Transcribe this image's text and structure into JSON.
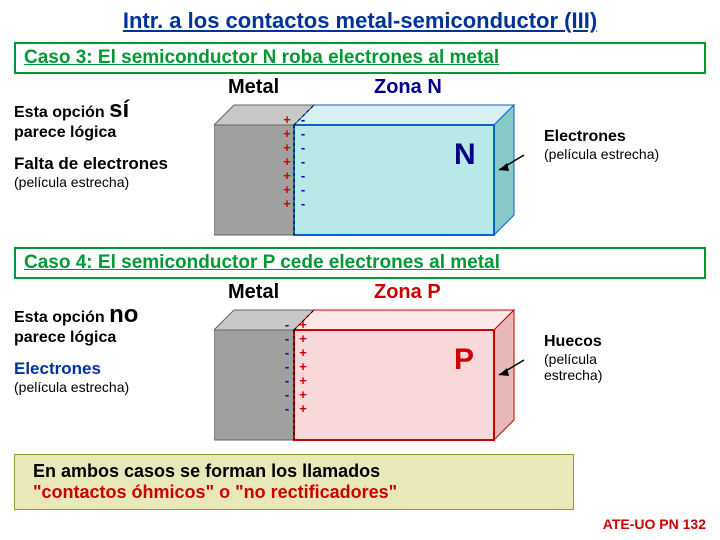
{
  "title": {
    "text": "Intr. a los contactos metal-semiconductor (III)",
    "color": "#003399"
  },
  "case3": {
    "heading": "Caso 3: El semiconductor N roba electrones al metal",
    "border_color": "#009933",
    "text_color": "#009933",
    "left": {
      "opt1a": "Esta opción ",
      "opt1b": "sí",
      "opt2": "parece lógica",
      "lack": "Falta de electrones",
      "film": "(película estrecha)"
    },
    "labels": {
      "metal": "Metal",
      "zone": "Zona N",
      "letter": "N"
    },
    "right": {
      "label": "Electrones",
      "film": "(película estrecha)"
    },
    "visual": {
      "metal_fill": "#a0a0a0",
      "metal_top": "#c8c8c8",
      "metal_side": "#808080",
      "zone_fill": "#b8e8e8",
      "zone_top": "#d8f0f0",
      "zone_side": "#88c8c8",
      "zone_stroke": "#0066cc",
      "letter_color": "#000088",
      "zone_label_color": "#000088",
      "plus_color": "#cc0000",
      "minus_color": "#0000cc"
    }
  },
  "case4": {
    "heading": "Caso 4: El semiconductor P cede electrones al metal",
    "border_color": "#009933",
    "text_color": "#009933",
    "left": {
      "opt1a": "Esta opción ",
      "opt1b": "no",
      "opt2": "parece lógica",
      "elec": "Electrones",
      "film": "(película estrecha)",
      "elec_color": "#003399"
    },
    "labels": {
      "metal": "Metal",
      "zone": "Zona P",
      "letter": "P"
    },
    "right": {
      "label": "Huecos",
      "film1": "(película",
      "film2": "estrecha)"
    },
    "visual": {
      "metal_fill": "#a0a0a0",
      "metal_top": "#c8c8c8",
      "metal_side": "#808080",
      "zone_fill": "#f8d8d8",
      "zone_top": "#fce8e8",
      "zone_side": "#e8b8b8",
      "zone_stroke": "#cc0000",
      "letter_color": "#cc0000",
      "zone_label_color": "#cc0000",
      "plus_color": "#cc0000",
      "minus_color": "#0000cc"
    }
  },
  "conclusion": {
    "line1": "En ambos casos se forman los llamados",
    "line2": "\"contactos óhmicos\" o \"no rectificadores\"",
    "color2": "#cc0000"
  },
  "footer": {
    "text": "ATE-UO PN 132",
    "color": "#cc0000"
  },
  "charges": {
    "plus": "+",
    "minus": "-"
  }
}
